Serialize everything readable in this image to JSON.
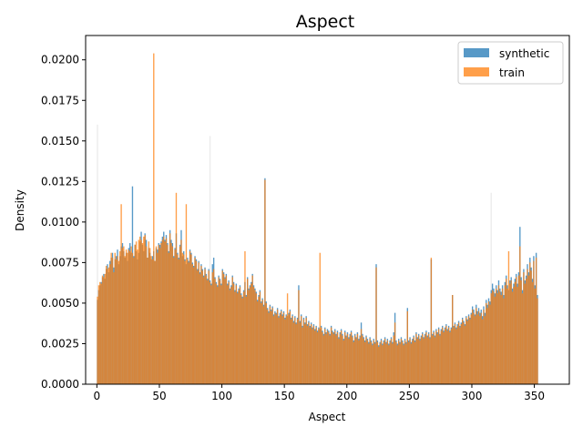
{
  "chart_data": {
    "type": "bar",
    "title": "Aspect",
    "xlabel": "Aspect",
    "ylabel": "Density",
    "xlim": [
      -9,
      378
    ],
    "ylim": [
      0,
      0.0215
    ],
    "xticks": [
      0,
      50,
      100,
      150,
      200,
      250,
      300,
      350
    ],
    "yticks": [
      0.0,
      0.0025,
      0.005,
      0.0075,
      0.01,
      0.0125,
      0.015,
      0.0175,
      0.02
    ],
    "ytick_labels": [
      "0.0000",
      "0.0025",
      "0.0050",
      "0.0075",
      "0.0100",
      "0.0125",
      "0.0150",
      "0.0175",
      "0.0200"
    ],
    "grid": false,
    "legend_position": "top-right",
    "bin_start": 0,
    "bin_width": 1,
    "colors": {
      "synthetic": "#1f77b4",
      "train": "#ff7f0e",
      "faint": "#d9d9d9"
    },
    "annotations": {
      "faint_spikes": [
        [
          0,
          0.016
        ],
        [
          90,
          0.0153
        ],
        [
          315,
          0.0118
        ]
      ]
    },
    "series": [
      {
        "name": "synthetic",
        "alpha": 0.75,
        "values": [
          0.0052,
          0.0058,
          0.0061,
          0.0063,
          0.0066,
          0.0068,
          0.0065,
          0.0071,
          0.0074,
          0.0069,
          0.0076,
          0.0078,
          0.0081,
          0.0072,
          0.0077,
          0.0079,
          0.0083,
          0.0074,
          0.0079,
          0.0085,
          0.0087,
          0.0082,
          0.0078,
          0.0081,
          0.0076,
          0.0084,
          0.0087,
          0.0081,
          0.0122,
          0.0079,
          0.0086,
          0.0082,
          0.0077,
          0.0081,
          0.0088,
          0.0094,
          0.0086,
          0.0082,
          0.0093,
          0.0089,
          0.0078,
          0.0084,
          0.0081,
          0.0077,
          0.0079,
          0.0082,
          0.0076,
          0.0084,
          0.0083,
          0.0087,
          0.0086,
          0.0088,
          0.0091,
          0.0094,
          0.0089,
          0.0092,
          0.0087,
          0.0082,
          0.0095,
          0.0089,
          0.0087,
          0.0079,
          0.0084,
          0.0093,
          0.0081,
          0.0078,
          0.0086,
          0.0095,
          0.0079,
          0.0082,
          0.0077,
          0.0074,
          0.0078,
          0.0076,
          0.0083,
          0.0081,
          0.0075,
          0.0073,
          0.0079,
          0.0077,
          0.0071,
          0.0076,
          0.0069,
          0.0074,
          0.0071,
          0.0067,
          0.0072,
          0.0068,
          0.0065,
          0.0071,
          0.0064,
          0.0062,
          0.0074,
          0.0078,
          0.0066,
          0.0063,
          0.0061,
          0.0067,
          0.0065,
          0.0062,
          0.0071,
          0.0069,
          0.0066,
          0.0068,
          0.0062,
          0.0064,
          0.0059,
          0.0061,
          0.0067,
          0.0063,
          0.0058,
          0.0062,
          0.0057,
          0.0059,
          0.0061,
          0.0056,
          0.0054,
          0.0058,
          0.0063,
          0.0055,
          0.0066,
          0.0059,
          0.0061,
          0.0063,
          0.0068,
          0.0061,
          0.0059,
          0.0057,
          0.0052,
          0.0055,
          0.0058,
          0.0051,
          0.0053,
          0.0049,
          0.0127,
          0.0051,
          0.0047,
          0.0045,
          0.0049,
          0.0046,
          0.0048,
          0.0043,
          0.0045,
          0.0044,
          0.0047,
          0.0042,
          0.0044,
          0.0046,
          0.0043,
          0.0045,
          0.0041,
          0.0043,
          0.0042,
          0.0044,
          0.0046,
          0.0041,
          0.0043,
          0.0039,
          0.0042,
          0.0038,
          0.0041,
          0.0061,
          0.0039,
          0.0043,
          0.0036,
          0.0041,
          0.0038,
          0.0042,
          0.0037,
          0.0039,
          0.0036,
          0.0038,
          0.0035,
          0.0037,
          0.0034,
          0.0036,
          0.0033,
          0.0035,
          0.0034,
          0.0036,
          0.0033,
          0.0031,
          0.0035,
          0.0032,
          0.0034,
          0.0033,
          0.0031,
          0.0036,
          0.0033,
          0.0032,
          0.0034,
          0.0031,
          0.0033,
          0.0029,
          0.0032,
          0.0034,
          0.0031,
          0.0028,
          0.0033,
          0.003,
          0.0032,
          0.0029,
          0.0031,
          0.0033,
          0.003,
          0.0027,
          0.0031,
          0.0029,
          0.0032,
          0.0028,
          0.003,
          0.0038,
          0.0031,
          0.0029,
          0.0027,
          0.003,
          0.0028,
          0.0026,
          0.0029,
          0.0027,
          0.0025,
          0.0028,
          0.0026,
          0.0074,
          0.0027,
          0.0024,
          0.0026,
          0.0028,
          0.0025,
          0.0027,
          0.0029,
          0.0026,
          0.0028,
          0.0025,
          0.0027,
          0.0029,
          0.0026,
          0.0032,
          0.0044,
          0.0027,
          0.0025,
          0.0028,
          0.0026,
          0.0029,
          0.0027,
          0.0025,
          0.0028,
          0.0026,
          0.0047,
          0.0027,
          0.0029,
          0.0026,
          0.0028,
          0.003,
          0.0027,
          0.0032,
          0.0029,
          0.0031,
          0.0028,
          0.003,
          0.0032,
          0.0029,
          0.0031,
          0.0033,
          0.003,
          0.0032,
          0.0029,
          0.0077,
          0.0031,
          0.0033,
          0.003,
          0.0034,
          0.0032,
          0.0035,
          0.0031,
          0.0034,
          0.0036,
          0.0033,
          0.0035,
          0.0037,
          0.0034,
          0.0036,
          0.0033,
          0.0035,
          0.0055,
          0.0036,
          0.0038,
          0.0035,
          0.0037,
          0.0039,
          0.0036,
          0.0038,
          0.0041,
          0.0039,
          0.0037,
          0.0042,
          0.004,
          0.0043,
          0.0041,
          0.0044,
          0.0048,
          0.0046,
          0.0043,
          0.0049,
          0.0045,
          0.0047,
          0.0044,
          0.0046,
          0.0042,
          0.0048,
          0.0044,
          0.0052,
          0.0049,
          0.0053,
          0.0051,
          0.0058,
          0.0062,
          0.0059,
          0.0056,
          0.0061,
          0.0058,
          0.0064,
          0.0059,
          0.0057,
          0.0061,
          0.0055,
          0.0063,
          0.0067,
          0.0061,
          0.0058,
          0.0064,
          0.0066,
          0.0059,
          0.0062,
          0.0065,
          0.0068,
          0.0062,
          0.0069,
          0.0097,
          0.0066,
          0.0058,
          0.0071,
          0.0064,
          0.0067,
          0.0074,
          0.0069,
          0.0078,
          0.0072,
          0.0065,
          0.0079,
          0.0061,
          0.0081,
          0.0055
        ]
      },
      {
        "name": "train",
        "alpha": 0.75,
        "values": [
          0.0054,
          0.0061,
          0.0063,
          0.0062,
          0.0067,
          0.0066,
          0.0068,
          0.0073,
          0.0071,
          0.0072,
          0.0074,
          0.0081,
          0.0078,
          0.0069,
          0.0081,
          0.0077,
          0.0079,
          0.0076,
          0.0082,
          0.0111,
          0.0084,
          0.0085,
          0.0079,
          0.0083,
          0.0081,
          0.0083,
          0.0082,
          0.0085,
          0.0081,
          0.0078,
          0.0086,
          0.0088,
          0.0083,
          0.0089,
          0.0091,
          0.0089,
          0.0087,
          0.0091,
          0.0092,
          0.0085,
          0.0078,
          0.0088,
          0.0084,
          0.0079,
          0.0077,
          0.0204,
          0.0076,
          0.0085,
          0.0081,
          0.0086,
          0.0084,
          0.0087,
          0.0089,
          0.0091,
          0.0088,
          0.009,
          0.0086,
          0.0081,
          0.0093,
          0.0087,
          0.0085,
          0.0078,
          0.0083,
          0.0118,
          0.008,
          0.0077,
          0.0085,
          0.0089,
          0.0081,
          0.008,
          0.0076,
          0.0111,
          0.0077,
          0.0075,
          0.0082,
          0.008,
          0.0074,
          0.0072,
          0.0078,
          0.0076,
          0.007,
          0.0075,
          0.0068,
          0.0073,
          0.007,
          0.0066,
          0.0071,
          0.0067,
          0.0064,
          0.007,
          0.0063,
          0.0061,
          0.0069,
          0.0071,
          0.0065,
          0.0062,
          0.006,
          0.0066,
          0.0064,
          0.0061,
          0.007,
          0.0068,
          0.0065,
          0.0067,
          0.0061,
          0.0063,
          0.0058,
          0.006,
          0.0066,
          0.0062,
          0.0057,
          0.0061,
          0.0056,
          0.0058,
          0.006,
          0.0055,
          0.0053,
          0.0057,
          0.0082,
          0.0054,
          0.0065,
          0.0058,
          0.006,
          0.0062,
          0.0067,
          0.006,
          0.0058,
          0.0056,
          0.0051,
          0.0054,
          0.0057,
          0.005,
          0.0052,
          0.0048,
          0.0126,
          0.005,
          0.0046,
          0.0044,
          0.0048,
          0.0045,
          0.0047,
          0.0042,
          0.0044,
          0.0043,
          0.0046,
          0.0041,
          0.0043,
          0.0045,
          0.0042,
          0.0044,
          0.004,
          0.0042,
          0.0056,
          0.0043,
          0.0045,
          0.004,
          0.0042,
          0.0038,
          0.0041,
          0.0037,
          0.004,
          0.0058,
          0.0038,
          0.0042,
          0.0035,
          0.004,
          0.0037,
          0.0041,
          0.0036,
          0.0038,
          0.0035,
          0.0037,
          0.0034,
          0.0036,
          0.0033,
          0.0035,
          0.0032,
          0.0034,
          0.0081,
          0.0035,
          0.0032,
          0.003,
          0.0034,
          0.0031,
          0.0033,
          0.0032,
          0.003,
          0.0035,
          0.0032,
          0.0031,
          0.0033,
          0.003,
          0.0032,
          0.0028,
          0.0031,
          0.0033,
          0.003,
          0.0027,
          0.0032,
          0.0029,
          0.0031,
          0.0028,
          0.003,
          0.0032,
          0.0029,
          0.0026,
          0.003,
          0.0028,
          0.0031,
          0.0027,
          0.0029,
          0.0034,
          0.003,
          0.0028,
          0.0026,
          0.0029,
          0.0027,
          0.0025,
          0.0028,
          0.0026,
          0.0024,
          0.0027,
          0.0025,
          0.0072,
          0.0026,
          0.0023,
          0.0025,
          0.0027,
          0.0024,
          0.0026,
          0.0028,
          0.0025,
          0.0027,
          0.0024,
          0.0026,
          0.0028,
          0.0025,
          0.003,
          0.0038,
          0.0026,
          0.0024,
          0.0027,
          0.0025,
          0.0028,
          0.0026,
          0.0024,
          0.0027,
          0.0025,
          0.0045,
          0.0026,
          0.0028,
          0.0025,
          0.0027,
          0.0029,
          0.0026,
          0.0031,
          0.0028,
          0.003,
          0.0027,
          0.0029,
          0.0031,
          0.0028,
          0.003,
          0.0032,
          0.0029,
          0.0031,
          0.0028,
          0.0078,
          0.003,
          0.0032,
          0.0029,
          0.0033,
          0.0031,
          0.0034,
          0.003,
          0.0033,
          0.0035,
          0.0032,
          0.0034,
          0.0036,
          0.0033,
          0.0035,
          0.0032,
          0.0034,
          0.0055,
          0.0035,
          0.0037,
          0.0034,
          0.0036,
          0.0038,
          0.0035,
          0.0037,
          0.004,
          0.0038,
          0.0036,
          0.0041,
          0.0039,
          0.0042,
          0.004,
          0.0043,
          0.0046,
          0.0044,
          0.0042,
          0.0047,
          0.0043,
          0.0045,
          0.0042,
          0.0044,
          0.004,
          0.0046,
          0.0042,
          0.005,
          0.0047,
          0.0051,
          0.0049,
          0.0056,
          0.0058,
          0.0057,
          0.0054,
          0.0059,
          0.0056,
          0.0061,
          0.0057,
          0.0055,
          0.0059,
          0.0053,
          0.0061,
          0.0065,
          0.0059,
          0.0082,
          0.0062,
          0.0064,
          0.0057,
          0.006,
          0.0063,
          0.0066,
          0.006,
          0.0067,
          0.0085,
          0.0064,
          0.0056,
          0.0069,
          0.0062,
          0.0065,
          0.0071,
          0.0067,
          0.0075,
          0.007,
          0.0063,
          0.0076,
          0.0059,
          0.0078,
          0.0053
        ]
      }
    ]
  }
}
